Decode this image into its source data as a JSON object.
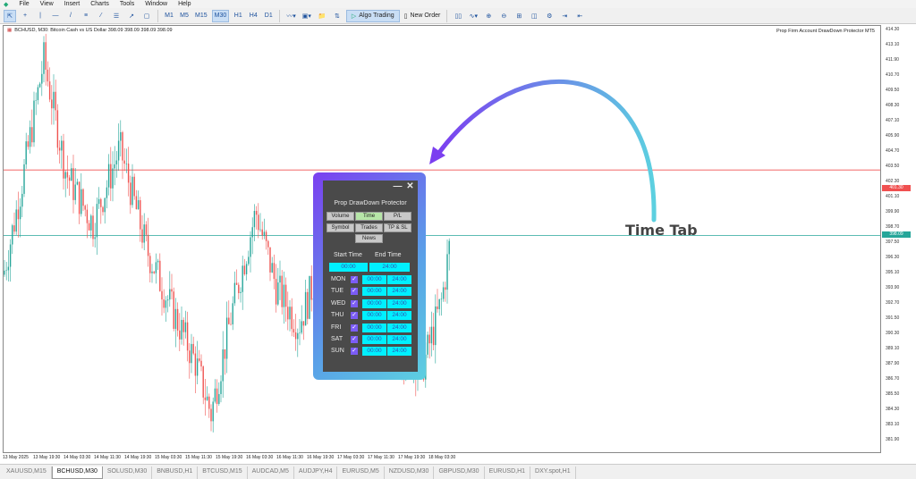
{
  "menu": [
    "File",
    "View",
    "Insert",
    "Charts",
    "Tools",
    "Window",
    "Help"
  ],
  "toolbar": {
    "timeframes": [
      "M1",
      "M5",
      "M15",
      "M30",
      "H1",
      "H4",
      "D1"
    ],
    "active_timeframe": "M30",
    "algo_trading": "Algo Trading",
    "new_order": "New Order"
  },
  "chart": {
    "title": "BCHUSD, M30:  Bitcoin Cash vs US Dollar  398.09 398.09 398.09 398.09",
    "indicator": "Prop Firm Account DrawDown Protector MT5",
    "price_ticks": [
      "414.30",
      "413.10",
      "411.90",
      "410.70",
      "409.50",
      "408.30",
      "407.10",
      "405.90",
      "404.70",
      "403.50",
      "402.30",
      "401.10",
      "399.90",
      "398.70",
      "397.50",
      "396.30",
      "395.10",
      "393.90",
      "392.70",
      "391.50",
      "390.30",
      "389.10",
      "387.90",
      "386.70",
      "385.50",
      "384.30",
      "383.10",
      "381.90"
    ],
    "ask_label": "401.30",
    "bid_label": "398.09",
    "ask_color": "#f05050",
    "bid_color": "#26a69a",
    "bull_color": "#26a69a",
    "bear_color": "#ef5350",
    "time_ticks": [
      "13 May 2025",
      "13 May 19:30",
      "14 May 03:30",
      "14 May 11:30",
      "14 May 19:30",
      "15 May 03:30",
      "15 May 11:30",
      "15 May 19:30",
      "16 May 03:30",
      "16 May 11:30",
      "16 May 19:30",
      "17 May 03:30",
      "17 May 11:30",
      "17 May 19:30",
      "18 May 03:30"
    ]
  },
  "panel": {
    "title": "Prop DrawDown Protector",
    "minimize": "—",
    "close": "✕",
    "tabs": [
      {
        "label": "Volume",
        "active": false
      },
      {
        "label": "Time",
        "active": true
      },
      {
        "label": "P/L",
        "active": false
      },
      {
        "label": "Symbol",
        "active": false
      },
      {
        "label": "Trades",
        "active": false
      },
      {
        "label": "TP & SL",
        "active": false
      },
      {
        "label": "News",
        "active": false
      }
    ],
    "start_time_label": "Start Time",
    "end_time_label": "End Time",
    "start_time": "00:00",
    "end_time": "24:00",
    "days": [
      {
        "day": "MON",
        "checked": true,
        "start": "00:00",
        "end": "24:00"
      },
      {
        "day": "TUE",
        "checked": true,
        "start": "00:00",
        "end": "24:00"
      },
      {
        "day": "WED",
        "checked": true,
        "start": "00:00",
        "end": "24:00"
      },
      {
        "day": "THU",
        "checked": true,
        "start": "00:00",
        "end": "24:00"
      },
      {
        "day": "FRI",
        "checked": true,
        "start": "00:00",
        "end": "24:00"
      },
      {
        "day": "SAT",
        "checked": true,
        "start": "00:00",
        "end": "24:00"
      },
      {
        "day": "SUN",
        "checked": true,
        "start": "00:00",
        "end": "24:00"
      }
    ]
  },
  "annotation": "Time Tab",
  "symbol_tabs": [
    "XAUUSD,M15",
    "BCHUSD,M30",
    "SOLUSD,M30",
    "BNBUSD,H1",
    "BTCUSD,M15",
    "AUDCAD,M5",
    "AUDJPY,H4",
    "EURUSD,M5",
    "NZDUSD,M30",
    "GBPUSD,M30",
    "EURUSD,H1",
    "DXY.spot,H1"
  ],
  "active_symbol_tab": "BCHUSD,M30"
}
